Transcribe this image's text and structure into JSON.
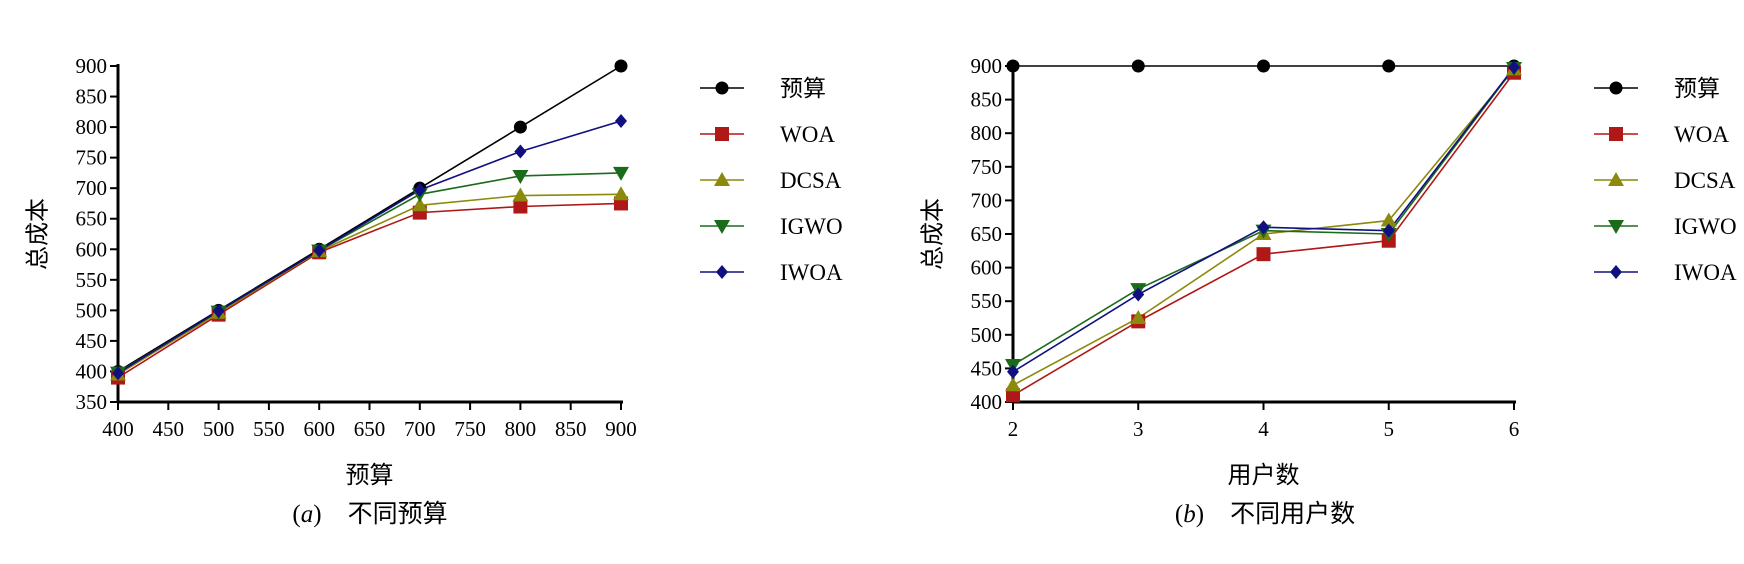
{
  "chart_data": [
    {
      "type": "line",
      "caption_letter": "a",
      "caption_text": "不同预算",
      "xlabel": "预算",
      "ylabel": "总成本",
      "xlim": [
        400,
        900
      ],
      "ylim": [
        350,
        900
      ],
      "xticks": [
        400,
        450,
        500,
        550,
        600,
        650,
        700,
        750,
        800,
        850,
        900
      ],
      "yticks": [
        350,
        400,
        450,
        500,
        550,
        600,
        650,
        700,
        750,
        800,
        850,
        900
      ],
      "x": [
        400,
        500,
        600,
        700,
        800,
        900
      ],
      "grid": false,
      "legend_position": "right",
      "series": [
        {
          "name": "预算",
          "marker": "circle",
          "color": "#000000",
          "values": [
            400,
            500,
            600,
            700,
            800,
            900
          ]
        },
        {
          "name": "WOA",
          "marker": "square",
          "color": "#b01717",
          "values": [
            390,
            493,
            595,
            660,
            670,
            675
          ]
        },
        {
          "name": "DCSA",
          "marker": "triangle-up",
          "color": "#8c8a0c",
          "values": [
            395,
            496,
            597,
            672,
            688,
            690
          ]
        },
        {
          "name": "IGWO",
          "marker": "triangle-down",
          "color": "#1a6b1a",
          "values": [
            398,
            498,
            598,
            690,
            720,
            725
          ]
        },
        {
          "name": "IWOA",
          "marker": "diamond",
          "color": "#101080",
          "values": [
            397,
            499,
            598,
            697,
            760,
            810
          ]
        }
      ]
    },
    {
      "type": "line",
      "caption_letter": "b",
      "caption_text": "不同用户数",
      "xlabel": "用户数",
      "ylabel": "总成本",
      "xlim": [
        2,
        6
      ],
      "ylim": [
        400,
        900
      ],
      "xticks": [
        2,
        3,
        4,
        5,
        6
      ],
      "yticks": [
        400,
        450,
        500,
        550,
        600,
        650,
        700,
        750,
        800,
        850,
        900
      ],
      "x": [
        2,
        3,
        4,
        5,
        6
      ],
      "grid": false,
      "legend_position": "right",
      "series": [
        {
          "name": "预算",
          "marker": "circle",
          "color": "#000000",
          "values": [
            900,
            900,
            900,
            900,
            900
          ]
        },
        {
          "name": "WOA",
          "marker": "square",
          "color": "#b01717",
          "values": [
            410,
            520,
            620,
            640,
            890
          ]
        },
        {
          "name": "DCSA",
          "marker": "triangle-up",
          "color": "#8c8a0c",
          "values": [
            425,
            525,
            650,
            670,
            895
          ]
        },
        {
          "name": "IGWO",
          "marker": "triangle-down",
          "color": "#1a6b1a",
          "values": [
            455,
            568,
            655,
            650,
            897
          ]
        },
        {
          "name": "IWOA",
          "marker": "diamond",
          "color": "#101080",
          "values": [
            445,
            560,
            660,
            655,
            898
          ]
        }
      ]
    }
  ]
}
